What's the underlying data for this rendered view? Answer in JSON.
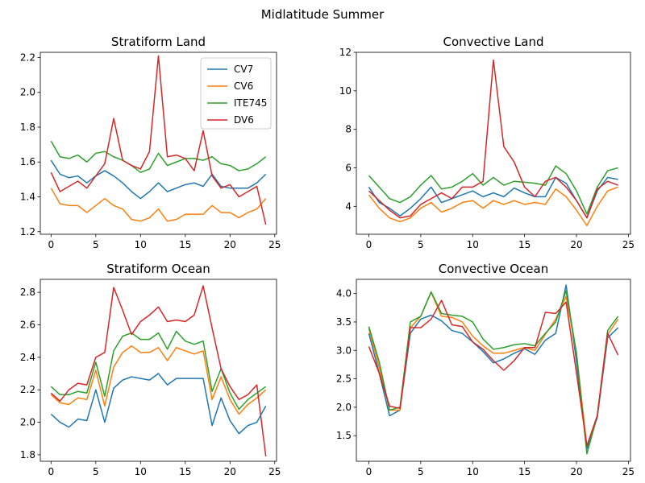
{
  "figure": {
    "suptitle": "Midlatitude Summer"
  },
  "colors": {
    "CV7": "#1f77b4",
    "CV6": "#ff7f0e",
    "ITE745": "#2ca02c",
    "DV6": "#d62728"
  },
  "chart_data": [
    {
      "type": "line",
      "title": "Stratiform Land",
      "legend": "top-right",
      "grid": false,
      "xlim": [
        -1.2,
        25.2
      ],
      "ylim": [
        1.185,
        2.23
      ],
      "xticks": [
        0,
        5,
        10,
        15,
        20,
        25
      ],
      "yticks": [
        1.2,
        1.4,
        1.6,
        1.8,
        2.0,
        2.2
      ],
      "ytick_labels": [
        "1.2",
        "1.4",
        "1.6",
        "1.8",
        "2.0",
        "2.2"
      ],
      "x": [
        0,
        1,
        2,
        3,
        4,
        5,
        6,
        7,
        8,
        9,
        10,
        11,
        12,
        13,
        14,
        15,
        16,
        17,
        18,
        19,
        20,
        21,
        22,
        23,
        24
      ],
      "series": [
        {
          "name": "CV7",
          "values": [
            1.61,
            1.53,
            1.51,
            1.52,
            1.48,
            1.52,
            1.55,
            1.52,
            1.48,
            1.43,
            1.39,
            1.43,
            1.48,
            1.43,
            1.45,
            1.47,
            1.48,
            1.46,
            1.53,
            1.46,
            1.45,
            1.45,
            1.45,
            1.48,
            1.53
          ]
        },
        {
          "name": "CV6",
          "values": [
            1.45,
            1.36,
            1.35,
            1.35,
            1.31,
            1.35,
            1.39,
            1.35,
            1.33,
            1.27,
            1.26,
            1.28,
            1.33,
            1.26,
            1.27,
            1.3,
            1.3,
            1.3,
            1.35,
            1.31,
            1.31,
            1.28,
            1.31,
            1.33,
            1.39
          ]
        },
        {
          "name": "ITE745",
          "values": [
            1.72,
            1.63,
            1.62,
            1.64,
            1.6,
            1.65,
            1.66,
            1.63,
            1.61,
            1.58,
            1.54,
            1.56,
            1.65,
            1.58,
            1.6,
            1.62,
            1.62,
            1.61,
            1.63,
            1.59,
            1.58,
            1.55,
            1.56,
            1.59,
            1.63
          ]
        },
        {
          "name": "DV6",
          "values": [
            1.54,
            1.43,
            1.46,
            1.49,
            1.45,
            1.52,
            1.59,
            1.85,
            1.61,
            1.58,
            1.56,
            1.66,
            2.21,
            1.63,
            1.64,
            1.62,
            1.55,
            1.78,
            1.52,
            1.45,
            1.47,
            1.4,
            1.43,
            1.46,
            1.24
          ]
        }
      ]
    },
    {
      "type": "line",
      "title": "Convective Land",
      "grid": false,
      "xlim": [
        -1.2,
        25.2
      ],
      "ylim": [
        2.55,
        12.0
      ],
      "xticks": [
        0,
        5,
        10,
        15,
        20,
        25
      ],
      "yticks": [
        4,
        6,
        8,
        10,
        12
      ],
      "ytick_labels": [
        "4",
        "6",
        "8",
        "10",
        "12"
      ],
      "x": [
        0,
        1,
        2,
        3,
        4,
        5,
        6,
        7,
        8,
        9,
        10,
        11,
        12,
        13,
        14,
        15,
        16,
        17,
        18,
        19,
        20,
        21,
        22,
        23,
        24
      ],
      "series": [
        {
          "name": "CV7",
          "values": [
            5.0,
            4.2,
            3.9,
            3.5,
            3.9,
            4.4,
            5.0,
            4.2,
            4.4,
            4.6,
            4.8,
            4.5,
            4.7,
            4.5,
            4.95,
            4.7,
            4.5,
            4.5,
            5.5,
            5.2,
            4.3,
            3.4,
            4.8,
            5.5,
            5.4
          ]
        },
        {
          "name": "CV6",
          "values": [
            4.6,
            3.9,
            3.4,
            3.2,
            3.4,
            3.9,
            4.2,
            3.7,
            3.9,
            4.2,
            4.3,
            3.9,
            4.3,
            4.1,
            4.3,
            4.1,
            4.2,
            4.1,
            4.9,
            4.5,
            3.8,
            3.0,
            4.0,
            4.8,
            5.0
          ]
        },
        {
          "name": "ITE745",
          "values": [
            5.6,
            5.0,
            4.4,
            4.2,
            4.5,
            5.1,
            5.6,
            4.9,
            5.0,
            5.3,
            5.7,
            5.1,
            5.5,
            5.1,
            5.3,
            5.25,
            5.2,
            5.1,
            6.1,
            5.7,
            4.8,
            3.6,
            5.0,
            5.85,
            6.0
          ]
        },
        {
          "name": "DV6",
          "values": [
            4.8,
            4.3,
            3.8,
            3.4,
            3.5,
            4.1,
            4.4,
            4.7,
            4.4,
            5.0,
            5.0,
            5.3,
            11.6,
            7.1,
            6.3,
            5.0,
            4.5,
            5.3,
            5.5,
            5.0,
            4.3,
            3.4,
            4.9,
            5.3,
            5.1
          ]
        }
      ]
    },
    {
      "type": "line",
      "title": "Stratiform Ocean",
      "grid": false,
      "xlim": [
        -1.2,
        25.2
      ],
      "ylim": [
        1.76,
        2.88
      ],
      "xticks": [
        0,
        5,
        10,
        15,
        20,
        25
      ],
      "yticks": [
        1.8,
        2.0,
        2.2,
        2.4,
        2.6,
        2.8
      ],
      "ytick_labels": [
        "1.8",
        "2.0",
        "2.2",
        "2.4",
        "2.6",
        "2.8"
      ],
      "x": [
        0,
        1,
        2,
        3,
        4,
        5,
        6,
        7,
        8,
        9,
        10,
        11,
        12,
        13,
        14,
        15,
        16,
        17,
        18,
        19,
        20,
        21,
        22,
        23,
        24
      ],
      "series": [
        {
          "name": "CV7",
          "values": [
            2.05,
            2.0,
            1.97,
            2.02,
            2.01,
            2.2,
            2.0,
            2.21,
            2.26,
            2.28,
            2.27,
            2.26,
            2.3,
            2.23,
            2.27,
            2.27,
            2.27,
            2.27,
            1.98,
            2.15,
            2.01,
            1.93,
            1.98,
            2.0,
            2.1
          ]
        },
        {
          "name": "CV6",
          "values": [
            2.17,
            2.12,
            2.11,
            2.15,
            2.14,
            2.32,
            2.1,
            2.34,
            2.43,
            2.47,
            2.43,
            2.43,
            2.46,
            2.38,
            2.46,
            2.44,
            2.42,
            2.44,
            2.14,
            2.28,
            2.14,
            2.05,
            2.11,
            2.15,
            2.2
          ]
        },
        {
          "name": "ITE745",
          "values": [
            2.22,
            2.17,
            2.17,
            2.19,
            2.18,
            2.37,
            2.16,
            2.44,
            2.53,
            2.55,
            2.51,
            2.51,
            2.55,
            2.45,
            2.56,
            2.5,
            2.48,
            2.5,
            2.19,
            2.33,
            2.18,
            2.08,
            2.14,
            2.18,
            2.22
          ]
        },
        {
          "name": "DV6",
          "values": [
            2.18,
            2.13,
            2.2,
            2.24,
            2.23,
            2.4,
            2.43,
            2.83,
            2.69,
            2.54,
            2.62,
            2.66,
            2.71,
            2.62,
            2.63,
            2.62,
            2.66,
            2.84,
            2.58,
            2.33,
            2.22,
            2.14,
            2.17,
            2.23,
            1.79
          ]
        }
      ]
    },
    {
      "type": "line",
      "title": "Convective Ocean",
      "grid": false,
      "xlim": [
        -1.2,
        25.2
      ],
      "ylim": [
        1.05,
        4.25
      ],
      "xticks": [
        0,
        5,
        10,
        15,
        20,
        25
      ],
      "yticks": [
        1.5,
        2.0,
        2.5,
        3.0,
        3.5,
        4.0
      ],
      "ytick_labels": [
        "1.5",
        "2.0",
        "2.5",
        "3.0",
        "3.5",
        "4.0"
      ],
      "x": [
        0,
        1,
        2,
        3,
        4,
        5,
        6,
        7,
        8,
        9,
        10,
        11,
        12,
        13,
        14,
        15,
        16,
        17,
        18,
        19,
        20,
        21,
        22,
        23,
        24
      ],
      "series": [
        {
          "name": "CV7",
          "values": [
            3.3,
            2.6,
            1.85,
            1.95,
            3.3,
            3.55,
            3.62,
            3.52,
            3.35,
            3.3,
            3.15,
            2.98,
            2.78,
            2.85,
            2.95,
            3.03,
            2.93,
            3.18,
            3.3,
            4.15,
            2.8,
            1.27,
            1.82,
            3.22,
            3.4
          ]
        },
        {
          "name": "CV6",
          "values": [
            3.38,
            2.7,
            1.95,
            1.95,
            3.4,
            3.6,
            4.02,
            3.6,
            3.58,
            3.5,
            3.25,
            3.08,
            2.95,
            2.95,
            3.0,
            3.05,
            3.0,
            3.28,
            3.55,
            3.95,
            2.95,
            1.32,
            1.85,
            3.28,
            3.55
          ]
        },
        {
          "name": "ITE745",
          "values": [
            3.42,
            2.8,
            1.95,
            2.0,
            3.5,
            3.6,
            4.03,
            3.65,
            3.62,
            3.6,
            3.5,
            3.2,
            3.02,
            3.05,
            3.1,
            3.12,
            3.08,
            3.3,
            3.5,
            4.05,
            2.95,
            1.18,
            1.85,
            3.35,
            3.6
          ]
        },
        {
          "name": "DV6",
          "values": [
            3.07,
            2.6,
            2.02,
            1.98,
            3.4,
            3.4,
            3.55,
            3.88,
            3.45,
            3.42,
            3.15,
            3.02,
            2.82,
            2.65,
            2.82,
            3.05,
            3.05,
            3.67,
            3.65,
            3.85,
            2.6,
            1.32,
            1.85,
            3.3,
            2.92
          ]
        }
      ]
    }
  ]
}
